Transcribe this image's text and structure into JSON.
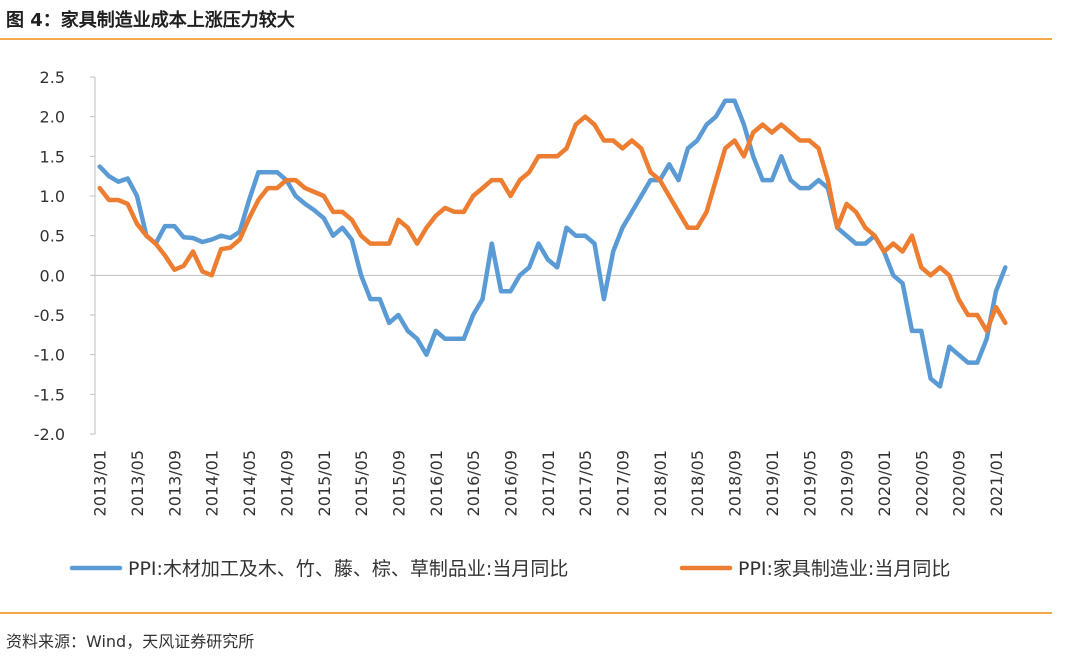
{
  "header": {
    "title": "图 4：家具制造业成本上涨压力较大"
  },
  "footer": {
    "source": "资料来源：Wind，天风证券研究所"
  },
  "colors": {
    "wood": "#5b9bd5",
    "furniture": "#ed7d31",
    "rule": "#f0a84a"
  },
  "chart_data": {
    "type": "line",
    "title": "",
    "xlabel": "",
    "ylabel": "",
    "ylim": [
      -2.0,
      2.5
    ],
    "yticks": [
      "2.5",
      "2.0",
      "1.5",
      "1.0",
      "0.5",
      "0.0",
      "-0.5",
      "-1.0",
      "-1.5",
      "-2.0"
    ],
    "grid": false,
    "legend": "bottom",
    "x_tick_labels": [
      "2013/01",
      "2013/05",
      "2013/09",
      "2014/01",
      "2014/05",
      "2014/09",
      "2015/01",
      "2015/05",
      "2015/09",
      "2016/01",
      "2016/05",
      "2016/09",
      "2017/01",
      "2017/05",
      "2017/09",
      "2018/01",
      "2018/05",
      "2018/09",
      "2019/01",
      "2019/05",
      "2019/09",
      "2020/01",
      "2020/05",
      "2020/09",
      "2021/01"
    ],
    "x_start": "2013/01",
    "x_end": "2021/02",
    "series": [
      {
        "name": "PPI:木材加工及木、竹、藤、棕、草制品业:当月同比",
        "color": "#5b9bd5",
        "values": [
          1.37,
          1.25,
          1.18,
          1.22,
          1.0,
          0.5,
          0.4,
          0.62,
          0.62,
          0.48,
          0.47,
          0.42,
          0.45,
          0.5,
          0.47,
          0.55,
          0.95,
          1.3,
          1.3,
          1.3,
          1.2,
          1.0,
          0.9,
          0.82,
          0.72,
          0.5,
          0.6,
          0.45,
          0.0,
          -0.3,
          -0.3,
          -0.6,
          -0.5,
          -0.7,
          -0.8,
          -1.0,
          -0.7,
          -0.8,
          -0.8,
          -0.8,
          -0.5,
          -0.3,
          0.4,
          -0.2,
          -0.2,
          0.0,
          0.1,
          0.4,
          0.2,
          0.1,
          0.6,
          0.5,
          0.5,
          0.4,
          -0.3,
          0.3,
          0.6,
          0.8,
          1.0,
          1.2,
          1.2,
          1.4,
          1.2,
          1.6,
          1.7,
          1.9,
          2.0,
          2.2,
          2.2,
          1.9,
          1.5,
          1.2,
          1.2,
          1.5,
          1.2,
          1.1,
          1.1,
          1.2,
          1.1,
          0.6,
          0.5,
          0.4,
          0.4,
          0.5,
          0.3,
          0.0,
          -0.1,
          -0.7,
          -0.7,
          -1.3,
          -1.4,
          -0.9,
          -1.0,
          -1.1,
          -1.1,
          -0.8,
          -0.2,
          0.1
        ]
      },
      {
        "name": "PPI:家具制造业:当月同比",
        "color": "#ed7d31",
        "values": [
          1.1,
          0.95,
          0.95,
          0.9,
          0.65,
          0.5,
          0.4,
          0.25,
          0.07,
          0.12,
          0.3,
          0.05,
          0.0,
          0.33,
          0.35,
          0.45,
          0.72,
          0.95,
          1.1,
          1.1,
          1.2,
          1.2,
          1.1,
          1.05,
          1.0,
          0.8,
          0.8,
          0.7,
          0.5,
          0.4,
          0.4,
          0.4,
          0.7,
          0.6,
          0.4,
          0.6,
          0.75,
          0.85,
          0.8,
          0.8,
          1.0,
          1.1,
          1.2,
          1.2,
          1.0,
          1.2,
          1.3,
          1.5,
          1.5,
          1.5,
          1.6,
          1.9,
          2.0,
          1.9,
          1.7,
          1.7,
          1.6,
          1.7,
          1.6,
          1.3,
          1.2,
          1.0,
          0.8,
          0.6,
          0.6,
          0.8,
          1.2,
          1.6,
          1.7,
          1.5,
          1.8,
          1.9,
          1.8,
          1.9,
          1.8,
          1.7,
          1.7,
          1.6,
          1.2,
          0.6,
          0.9,
          0.8,
          0.6,
          0.5,
          0.3,
          0.4,
          0.3,
          0.5,
          0.1,
          0.0,
          0.1,
          0.0,
          -0.3,
          -0.5,
          -0.5,
          -0.7,
          -0.4,
          -0.6
        ]
      }
    ]
  }
}
